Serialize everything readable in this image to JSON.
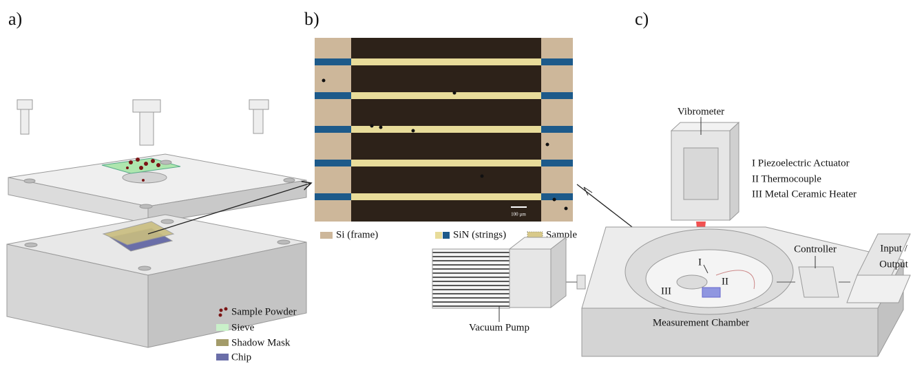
{
  "panel_labels": [
    "a)",
    "b)",
    "c)"
  ],
  "panel_a": {
    "legend": [
      "Sample Powder",
      "Sieve",
      "Shadow Mask",
      "Chip"
    ]
  },
  "panel_b": {
    "scale_bar": "100 µm",
    "legend": [
      "Si (frame)",
      "SiN (strings)",
      "Sample"
    ]
  },
  "panel_c": {
    "vibrometer": "Vibrometer",
    "components": [
      "I Piezoelectric Actuator",
      "II Thermocouple",
      "III Metal Ceramic Heater"
    ],
    "controller": "Controller",
    "io": [
      "Input /",
      "Output"
    ],
    "vacuum_pump": "Vacuum Pump",
    "chamber": "Measurement Chamber",
    "markers": [
      "I",
      "II",
      "III"
    ]
  }
}
